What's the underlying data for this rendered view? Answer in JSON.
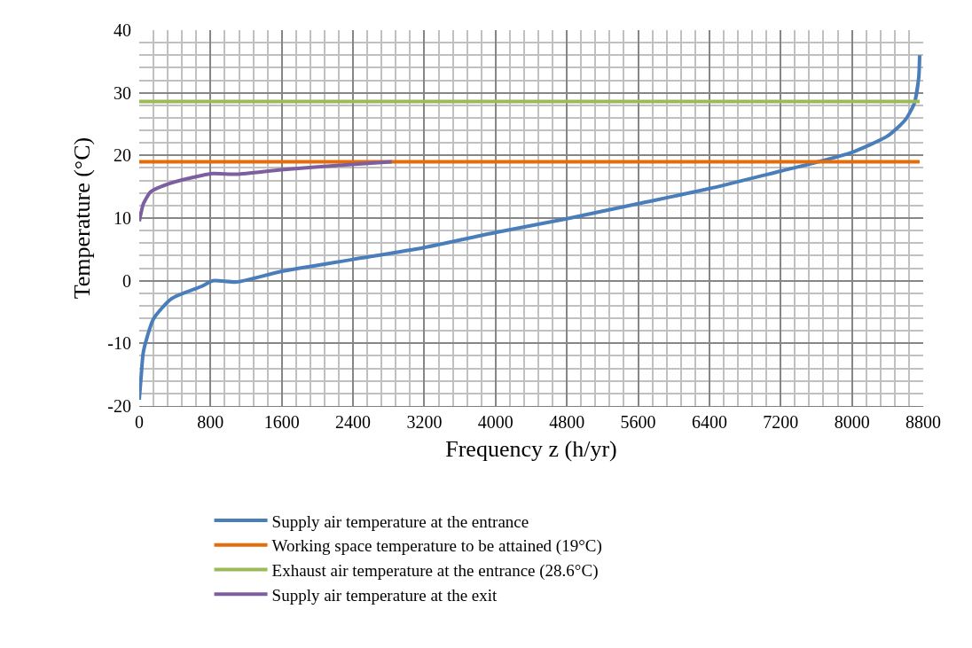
{
  "chart_data": {
    "type": "line",
    "xlabel": "Frequency z (h/yr)",
    "ylabel": "Temperature (°C)",
    "xlim": [
      0,
      8800
    ],
    "xticks": [
      0,
      800,
      1600,
      2400,
      3200,
      4000,
      4800,
      5600,
      6400,
      7200,
      8000,
      8800
    ],
    "ylim": [
      -20,
      40
    ],
    "yticks": [
      -20,
      -10,
      0,
      10,
      20,
      30,
      40
    ],
    "grid": true,
    "legend": "bottom",
    "marker": "none",
    "line_style": "solid",
    "series": [
      {
        "name": "Supply air temperature at the entrance",
        "color": "#4a7ebb",
        "x": [
          0,
          23,
          47,
          160,
          360,
          700,
          826,
          1095,
          1600,
          2400,
          3200,
          4000,
          4800,
          5600,
          6400,
          7200,
          7600,
          8000,
          8400,
          8600,
          8700,
          8750,
          8760
        ],
        "values": [
          -19,
          -15,
          -11.3,
          -6.1,
          -2.9,
          -0.9,
          0,
          -0.2,
          1.5,
          3.4,
          5.3,
          7.7,
          9.9,
          12.3,
          14.7,
          17.5,
          18.9,
          20.5,
          23.1,
          25.7,
          28.3,
          32.5,
          36
        ]
      },
      {
        "name": "Working space temperature to be attained (19°C)",
        "color": "#e46c0a",
        "x": [
          0,
          8760
        ],
        "values": [
          19,
          19
        ]
      },
      {
        "name": "Exhaust air temperature at the entrance (28.6°C)",
        "color": "#9bbb59",
        "x": [
          0,
          8760
        ],
        "values": [
          28.6,
          28.6
        ]
      },
      {
        "name": "Supply air temperature at the exit",
        "color": "#7d5fa0",
        "x": [
          0,
          23,
          47,
          130,
          360,
          700,
          826,
          1095,
          1593,
          2420,
          2834
        ],
        "values": [
          9.5,
          11,
          12.3,
          14.2,
          15.6,
          16.8,
          17.1,
          17.0,
          17.7,
          18.6,
          19.0
        ]
      }
    ]
  }
}
